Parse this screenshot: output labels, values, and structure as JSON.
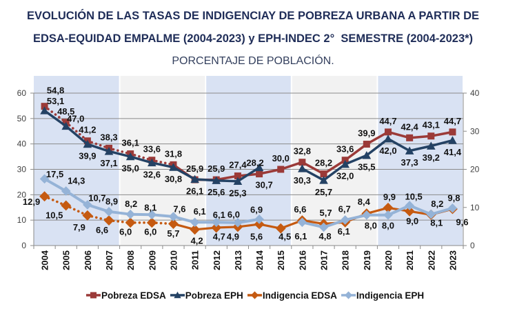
{
  "chart_data": {
    "type": "line",
    "title_lines": [
      "EVOLUCIÓN DE LAS TASAS DE INDIGENCIAY DE POBREZA URBANA A PARTIR DE",
      "EDSA-EQUIDAD EMPALME (2004-2023) y EPH-INDEC 2°  SEMESTRE (2004-2023*)"
    ],
    "subtitle": "PORCENTAJE DE POBLACIÓN.",
    "xlabel": "",
    "ylabel_left": "",
    "ylabel_right": "",
    "categories": [
      "2004",
      "2005",
      "2006",
      "2007",
      "2008",
      "2009",
      "2010",
      "2011",
      "2012",
      "2013",
      "2014",
      "2015",
      "2016",
      "2017",
      "2018",
      "2019",
      "2020",
      "2021",
      "2022",
      "2023"
    ],
    "y_left": {
      "min": 0,
      "max": 60,
      "ticks": [
        0,
        10,
        20,
        30,
        40,
        50,
        60
      ]
    },
    "y_right": {
      "min": 0,
      "max": 40,
      "ticks": [
        0,
        10,
        20,
        30,
        40
      ]
    },
    "grid": true,
    "legend_position": "bottom",
    "decimal_separator": ",",
    "shaded_periods": [
      {
        "from": "2004",
        "to": "2007",
        "color": "#d9e2f3"
      },
      {
        "from": "2008",
        "to": "2011",
        "color": "#f2f2f2"
      },
      {
        "from": "2012",
        "to": "2015",
        "color": "#d9e2f3"
      },
      {
        "from": "2016",
        "to": "2019",
        "color": "#f2f2f2"
      },
      {
        "from": "2020",
        "to": "2023",
        "color": "#d9e2f3"
      }
    ],
    "series": [
      {
        "name": "Pobreza EDSA",
        "axis": "left",
        "marker": "square",
        "color": "#9b3a38",
        "dotted_through": "2010",
        "values": [
          54.8,
          48.5,
          41.2,
          38.3,
          36.1,
          33.6,
          31.8,
          25.9,
          25.9,
          27.4,
          28.2,
          30.0,
          32.8,
          28.2,
          33.6,
          39.9,
          44.7,
          42.4,
          43.1,
          44.7
        ]
      },
      {
        "name": "Pobreza EPH",
        "axis": "left",
        "marker": "triangle",
        "color": "#244264",
        "dotted_through": null,
        "values": [
          53.1,
          47.0,
          39.9,
          37.1,
          35.0,
          32.6,
          30.8,
          26.1,
          25.6,
          25.3,
          30.7,
          null,
          30.3,
          25.7,
          32.0,
          35.5,
          42.0,
          37.3,
          39.2,
          41.4
        ]
      },
      {
        "name": "Indigencia EDSA",
        "axis": "right",
        "marker": "diamond",
        "color": "#c55a11",
        "dotted_through": "2010",
        "values": [
          12.9,
          10.5,
          7.9,
          6.6,
          6.0,
          6.0,
          5.7,
          4.2,
          4.7,
          4.9,
          5.6,
          4.5,
          6.6,
          5.7,
          6.1,
          8.4,
          9.9,
          9.0,
          8.1,
          9.6
        ]
      },
      {
        "name": "Indigencia EPH",
        "axis": "right",
        "marker": "diamond",
        "color": "#95b3d7",
        "dotted_through": null,
        "values": [
          17.5,
          14.3,
          10.7,
          8.9,
          8.2,
          8.1,
          7.6,
          6.1,
          6.1,
          6.0,
          6.9,
          null,
          6.1,
          4.8,
          6.7,
          8.0,
          8.0,
          10.5,
          8.2,
          9.8
        ]
      }
    ]
  }
}
